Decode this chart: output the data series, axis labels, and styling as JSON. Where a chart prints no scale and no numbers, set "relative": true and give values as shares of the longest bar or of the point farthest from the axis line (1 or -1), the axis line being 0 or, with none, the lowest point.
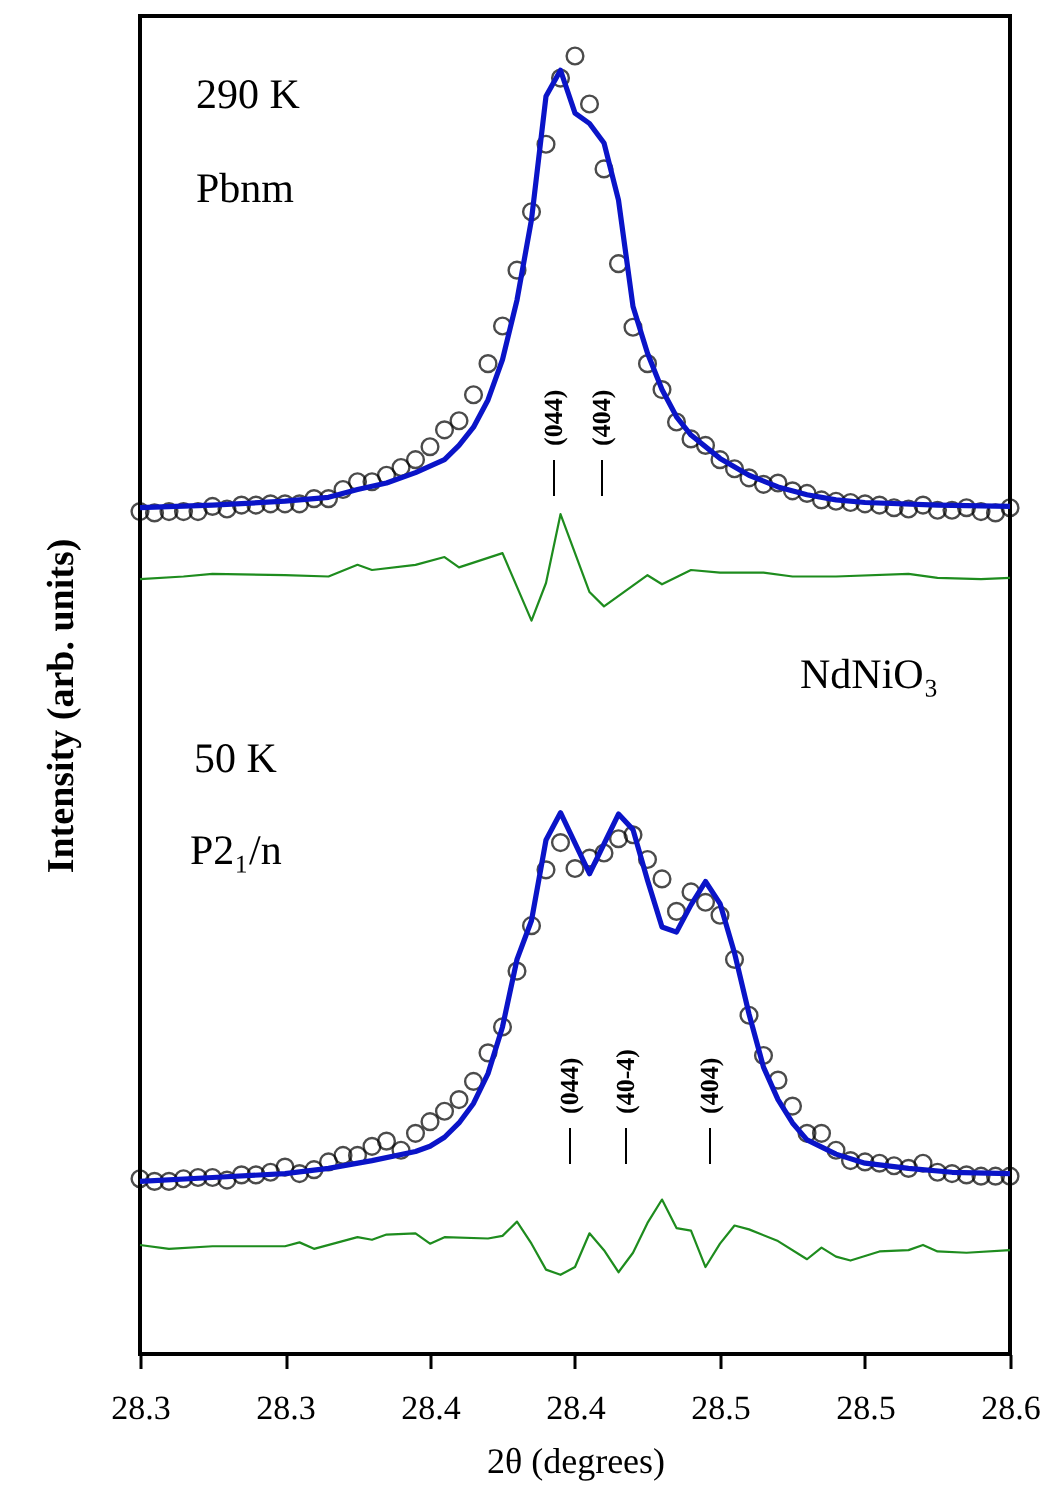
{
  "chart_data": {
    "type": "scatter",
    "relative": true,
    "xlabel": "2θ  (degrees)",
    "ylabel": "Intensity (arb. units)",
    "xlim": [
      28.3,
      28.6
    ],
    "xticks": [
      28.3,
      {
        "value": 28.35,
        "label": "28.3"
      },
      28.4,
      {
        "value": 28.45,
        "label": "28.4"
      },
      28.5,
      {
        "value": 28.55,
        "label": "28.5"
      },
      28.6
    ],
    "grid": false,
    "x": [
      28.3,
      28.305,
      28.31,
      28.315,
      28.32,
      28.325,
      28.33,
      28.335,
      28.34,
      28.345,
      28.35,
      28.355,
      28.36,
      28.365,
      28.37,
      28.375,
      28.38,
      28.385,
      28.39,
      28.395,
      28.4,
      28.405,
      28.41,
      28.415,
      28.42,
      28.425,
      28.43,
      28.435,
      28.44,
      28.445,
      28.45,
      28.455,
      28.46,
      28.465,
      28.47,
      28.475,
      28.48,
      28.485,
      28.49,
      28.495,
      28.5,
      28.505,
      28.51,
      28.515,
      28.52,
      28.525,
      28.53,
      28.535,
      28.54,
      28.545,
      28.55,
      28.555,
      28.56,
      28.565,
      28.57,
      28.575,
      28.58,
      28.585,
      28.59,
      28.595,
      28.6
    ],
    "series": [
      {
        "marker": "circle",
        "color": "#000000",
        "values": [
          0.649,
          0.648,
          0.649,
          0.649,
          0.649,
          0.653,
          0.651,
          0.654,
          0.654,
          0.655,
          0.655,
          0.655,
          0.659,
          0.659,
          0.666,
          0.672,
          0.672,
          0.677,
          0.683,
          0.689,
          0.699,
          0.712,
          0.719,
          0.739,
          0.763,
          0.792,
          0.835,
          0.88,
          0.932,
          0.983,
          1.0,
          0.963,
          0.913,
          0.84,
          0.791,
          0.763,
          0.743,
          0.718,
          0.705,
          0.7,
          0.689,
          0.682,
          0.675,
          0.67,
          0.671,
          0.665,
          0.663,
          0.658,
          0.657,
          0.656,
          0.655,
          0.654,
          0.652,
          0.651,
          0.654,
          0.65,
          0.65,
          0.652,
          0.649,
          0.648,
          0.652
        ]
      },
      {
        "type": "line",
        "line_style": "solid",
        "color": "#0a14c8",
        "x": [
          28.3,
          28.325,
          28.35,
          28.365,
          28.375,
          28.385,
          28.395,
          28.405,
          28.41,
          28.415,
          28.42,
          28.425,
          28.43,
          28.435,
          28.44,
          28.445,
          28.45,
          28.455,
          28.46,
          28.465,
          28.47,
          28.475,
          28.48,
          28.485,
          28.49,
          28.5,
          28.51,
          28.52,
          28.53,
          28.54,
          28.55,
          28.575,
          28.6
        ],
        "values": [
          0.652,
          0.654,
          0.657,
          0.66,
          0.666,
          0.671,
          0.679,
          0.689,
          0.7,
          0.714,
          0.735,
          0.766,
          0.812,
          0.874,
          0.969,
          0.989,
          0.956,
          0.948,
          0.933,
          0.889,
          0.807,
          0.771,
          0.743,
          0.722,
          0.708,
          0.69,
          0.677,
          0.668,
          0.662,
          0.658,
          0.656,
          0.654,
          0.653
        ]
      },
      {
        "type": "line",
        "line_style": "solid",
        "color": "#1e8c1e",
        "x": [
          28.3,
          28.315,
          28.325,
          28.35,
          28.365,
          28.375,
          28.38,
          28.395,
          28.405,
          28.41,
          28.425,
          28.435,
          28.44,
          28.445,
          28.455,
          28.46,
          28.475,
          28.48,
          28.49,
          28.5,
          28.515,
          28.525,
          28.54,
          28.565,
          28.575,
          28.59,
          28.6
        ],
        "values": [
          0.597,
          0.599,
          0.601,
          0.6,
          0.599,
          0.608,
          0.604,
          0.608,
          0.614,
          0.606,
          0.617,
          0.565,
          0.594,
          0.647,
          0.587,
          0.576,
          0.6,
          0.593,
          0.604,
          0.602,
          0.602,
          0.599,
          0.599,
          0.601,
          0.598,
          0.597,
          0.598
        ]
      },
      {
        "marker": "circle",
        "color": "#000000",
        "values": [
          0.135,
          0.133,
          0.133,
          0.135,
          0.136,
          0.136,
          0.134,
          0.138,
          0.138,
          0.14,
          0.144,
          0.139,
          0.142,
          0.148,
          0.153,
          0.153,
          0.16,
          0.164,
          0.157,
          0.17,
          0.179,
          0.187,
          0.196,
          0.21,
          0.232,
          0.252,
          0.295,
          0.33,
          0.373,
          0.394,
          0.374,
          0.382,
          0.386,
          0.397,
          0.4,
          0.381,
          0.366,
          0.341,
          0.356,
          0.348,
          0.338,
          0.304,
          0.261,
          0.23,
          0.211,
          0.191,
          0.17,
          0.17,
          0.157,
          0.149,
          0.148,
          0.147,
          0.145,
          0.143,
          0.147,
          0.14,
          0.139,
          0.138,
          0.137,
          0.137,
          0.137
        ]
      },
      {
        "type": "line",
        "line_style": "solid",
        "color": "#0a14c8",
        "x": [
          28.3,
          28.325,
          28.35,
          28.365,
          28.38,
          28.395,
          28.4,
          28.405,
          28.41,
          28.415,
          28.42,
          28.425,
          28.43,
          28.435,
          28.44,
          28.445,
          28.455,
          28.465,
          28.47,
          28.475,
          28.48,
          28.485,
          28.49,
          28.495,
          28.5,
          28.505,
          28.51,
          28.515,
          28.52,
          28.525,
          28.53,
          28.54,
          28.55,
          28.565,
          28.58,
          28.6
        ],
        "values": [
          0.133,
          0.136,
          0.139,
          0.143,
          0.149,
          0.156,
          0.16,
          0.167,
          0.178,
          0.193,
          0.216,
          0.252,
          0.304,
          0.334,
          0.396,
          0.417,
          0.37,
          0.416,
          0.404,
          0.365,
          0.329,
          0.325,
          0.346,
          0.364,
          0.347,
          0.309,
          0.262,
          0.221,
          0.196,
          0.178,
          0.165,
          0.154,
          0.147,
          0.143,
          0.14,
          0.139
        ]
      },
      {
        "type": "line",
        "line_style": "solid",
        "color": "#1e8c1e",
        "x": [
          28.3,
          28.31,
          28.325,
          28.35,
          28.355,
          28.36,
          28.375,
          28.38,
          28.385,
          28.395,
          28.4,
          28.405,
          28.42,
          28.425,
          28.43,
          28.435,
          28.44,
          28.445,
          28.45,
          28.455,
          28.46,
          28.465,
          28.47,
          28.475,
          28.48,
          28.485,
          28.49,
          28.495,
          28.5,
          28.505,
          28.51,
          28.52,
          28.53,
          28.535,
          28.54,
          28.545,
          28.555,
          28.565,
          28.57,
          28.575,
          28.585,
          28.6
        ],
        "values": [
          0.084,
          0.081,
          0.083,
          0.083,
          0.086,
          0.081,
          0.09,
          0.088,
          0.092,
          0.093,
          0.085,
          0.09,
          0.089,
          0.091,
          0.102,
          0.085,
          0.065,
          0.061,
          0.067,
          0.093,
          0.08,
          0.063,
          0.078,
          0.101,
          0.119,
          0.097,
          0.095,
          0.067,
          0.085,
          0.099,
          0.096,
          0.087,
          0.073,
          0.082,
          0.075,
          0.072,
          0.079,
          0.08,
          0.084,
          0.079,
          0.078,
          0.08
        ]
      }
    ],
    "annotations": [
      "290 K",
      "Pbnm",
      "NdNiO₃",
      "50 K",
      "P2₁/n",
      "(044)",
      "(404)",
      "(044)",
      "(40-4)",
      "(404)"
    ]
  }
}
